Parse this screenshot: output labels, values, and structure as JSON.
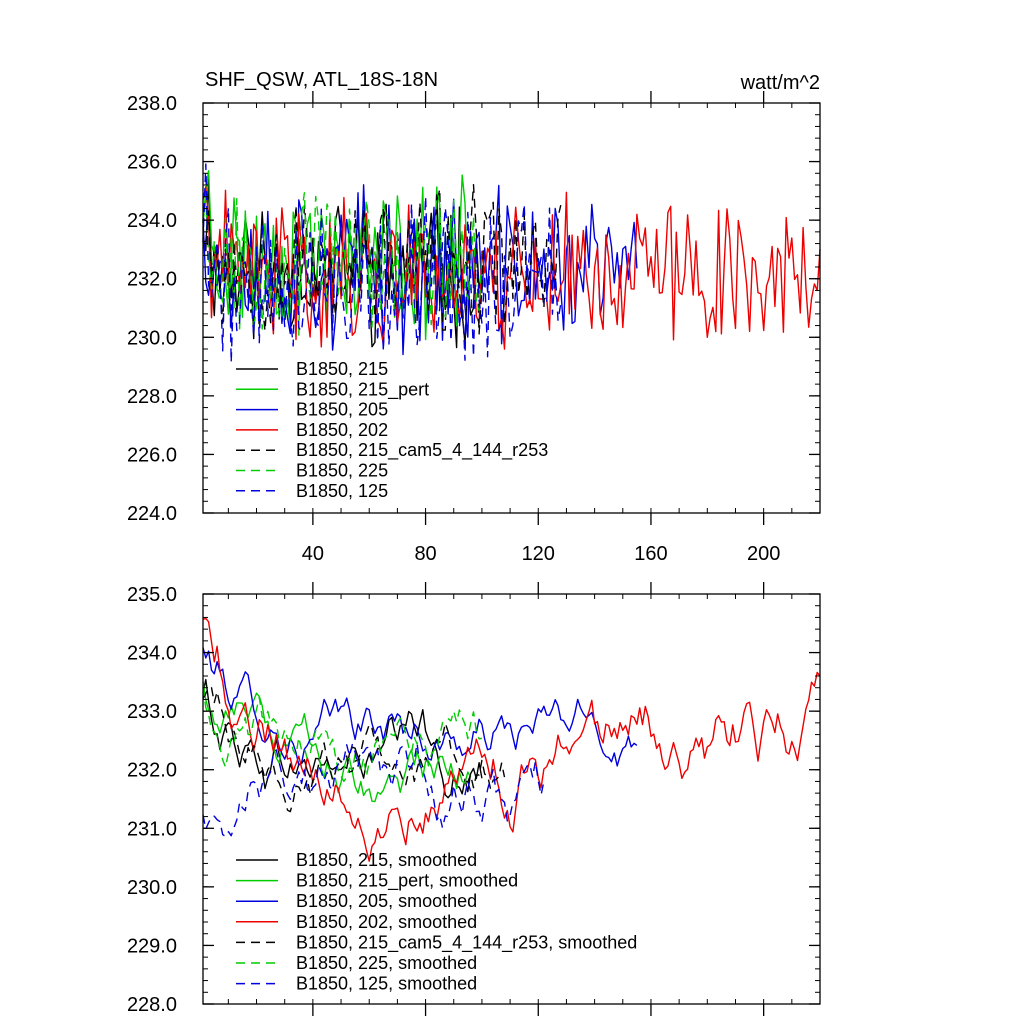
{
  "chart_data": [
    {
      "type": "line",
      "title": "SHF_QSW, ATL_18S-18N",
      "units": "watt/m^2",
      "xlabel": "",
      "ylabel": "",
      "xlim": [
        1,
        220
      ],
      "ylim": [
        224.0,
        238.0
      ],
      "x_ticks": [
        40,
        80,
        120,
        160,
        200
      ],
      "x_tick_labels": [
        "40",
        "80",
        "120",
        "160",
        "200"
      ],
      "y_ticks": [
        224.0,
        226.0,
        228.0,
        230.0,
        232.0,
        234.0,
        236.0,
        238.0
      ],
      "y_tick_labels": [
        "224.0",
        "226.0",
        "228.0",
        "230.0",
        "232.0",
        "234.0",
        "236.0",
        "238.0"
      ],
      "legend_position": "bottom-left",
      "series": [
        {
          "name": "B1850, 215",
          "color": "#000000",
          "dash": "solid",
          "length": 100,
          "mean": 232.4,
          "amp": 2.0,
          "seed": 11
        },
        {
          "name": "B1850, 215_pert",
          "color": "#00cc00",
          "dash": "solid",
          "length": 96,
          "mean": 232.7,
          "amp": 2.0,
          "seed": 23
        },
        {
          "name": "B1850, 205",
          "color": "#0000dd",
          "dash": "solid",
          "length": 155,
          "mean": 232.3,
          "amp": 2.1,
          "seed": 37
        },
        {
          "name": "B1850, 202",
          "color": "#ee0000",
          "dash": "solid",
          "length": 220,
          "mean": 232.2,
          "amp": 2.0,
          "seed": 41
        },
        {
          "name": "B1850, 215_cam5_4_144_r253",
          "color": "#000000",
          "dash": "dashed",
          "length": 128,
          "mean": 232.5,
          "amp": 1.9,
          "seed": 53
        },
        {
          "name": "B1850, 225",
          "color": "#00cc00",
          "dash": "dashed",
          "length": 100,
          "mean": 232.6,
          "amp": 1.9,
          "seed": 67
        },
        {
          "name": "B1850, 125",
          "color": "#0000dd",
          "dash": "dashed",
          "length": 128,
          "mean": 231.9,
          "amp": 2.2,
          "seed": 79
        }
      ]
    },
    {
      "type": "line",
      "title": "",
      "xlabel": "",
      "ylabel": "",
      "xlim": [
        1,
        220
      ],
      "ylim": [
        228.0,
        235.0
      ],
      "x_ticks": [
        40,
        80,
        120,
        160,
        200
      ],
      "x_tick_labels": [],
      "y_ticks": [
        228.0,
        229.0,
        230.0,
        231.0,
        232.0,
        233.0,
        234.0,
        235.0
      ],
      "y_tick_labels": [
        "228.0",
        "229.0",
        "230.0",
        "231.0",
        "232.0",
        "233.0",
        "234.0",
        "235.0"
      ],
      "legend_position": "bottom-left",
      "series": [
        {
          "name": "B1850, 215, smoothed",
          "color": "#000000",
          "dash": "solid",
          "length": 100,
          "mean": 232.1,
          "amp": 0.7,
          "seed": 11,
          "start": 233.3
        },
        {
          "name": "B1850, 215_pert, smoothed",
          "color": "#00cc00",
          "dash": "solid",
          "length": 96,
          "mean": 232.3,
          "amp": 0.6,
          "seed": 23,
          "start": 233.5
        },
        {
          "name": "B1850, 205, smoothed",
          "color": "#0000dd",
          "dash": "solid",
          "length": 155,
          "mean": 232.6,
          "amp": 0.6,
          "seed": 37,
          "start": 234.1
        },
        {
          "name": "B1850, 202, smoothed",
          "color": "#ee0000",
          "dash": "solid",
          "length": 220,
          "mean": 232.4,
          "amp": 0.8,
          "seed": 41,
          "start": 234.6
        },
        {
          "name": "B1850, 215_cam5_4_144_r253, smoothed",
          "color": "#000000",
          "dash": "dashed",
          "length": 108,
          "mean": 232.1,
          "amp": 0.6,
          "seed": 53,
          "start": 233.2
        },
        {
          "name": "B1850, 225, smoothed",
          "color": "#00cc00",
          "dash": "dashed",
          "length": 100,
          "mean": 232.1,
          "amp": 0.7,
          "seed": 67,
          "start": 233.4
        },
        {
          "name": "B1850, 125, smoothed",
          "color": "#0000dd",
          "dash": "dashed",
          "length": 122,
          "mean": 231.4,
          "amp": 0.8,
          "seed": 79,
          "start": 231.1
        }
      ]
    }
  ]
}
